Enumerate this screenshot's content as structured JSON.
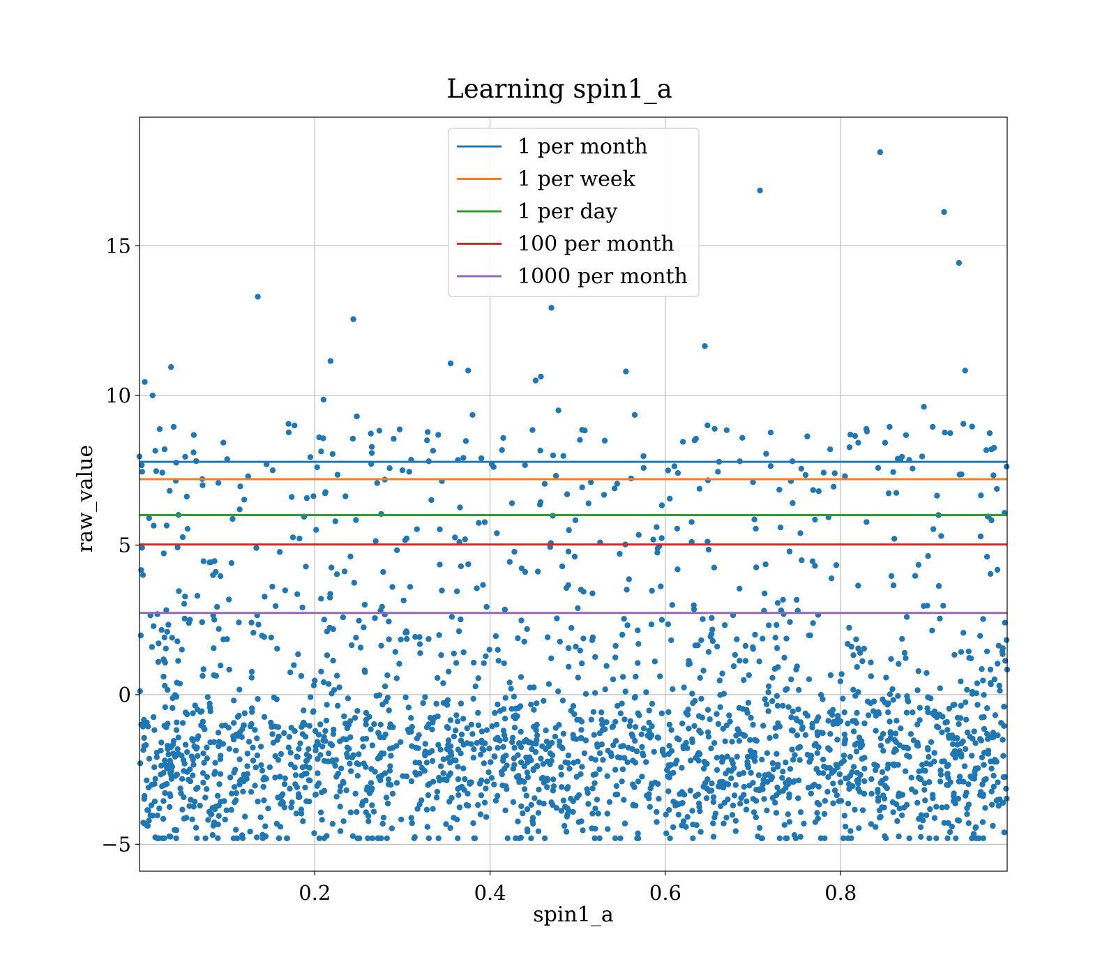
{
  "chart_data": {
    "type": "scatter",
    "title": "Learning spin1_a",
    "xlabel": "spin1_a",
    "ylabel": "raw_value",
    "xlim": [
      0.0,
      0.99
    ],
    "ylim": [
      -5.9,
      19.3
    ],
    "xticks": [
      0.2,
      0.4,
      0.6,
      0.8
    ],
    "xtick_labels": [
      "0.2",
      "0.4",
      "0.6",
      "0.8"
    ],
    "yticks": [
      -5,
      0,
      5,
      10,
      15
    ],
    "ytick_labels": [
      "−5",
      "0",
      "5",
      "10",
      "15"
    ],
    "grid": true,
    "legend_position": "top-center",
    "point_color": "#1f77b4",
    "scatter_series": {
      "name": "",
      "points": [
        [
          0.0,
          7.96
        ],
        [
          0.003,
          7.45
        ],
        [
          0.004,
          4.0
        ],
        [
          0.006,
          10.45
        ],
        [
          0.011,
          5.9
        ],
        [
          0.015,
          10.0
        ],
        [
          0.018,
          8.15
        ],
        [
          0.019,
          7.47
        ],
        [
          0.026,
          7.42
        ],
        [
          0.031,
          5.65
        ],
        [
          0.036,
          10.95
        ],
        [
          0.039,
          8.95
        ],
        [
          0.045,
          3.46
        ],
        [
          0.052,
          3.28
        ],
        [
          0.062,
          8.68
        ],
        [
          0.072,
          7.0
        ],
        [
          0.08,
          4.42
        ],
        [
          0.087,
          4.1
        ],
        [
          0.1,
          7.87
        ],
        [
          0.105,
          4.4
        ],
        [
          0.115,
          6.96
        ],
        [
          0.124,
          7.3
        ],
        [
          0.135,
          13.3
        ],
        [
          0.145,
          7.7
        ],
        [
          0.152,
          7.5
        ],
        [
          0.16,
          4.77
        ],
        [
          0.17,
          9.05
        ],
        [
          0.18,
          3.36
        ],
        [
          0.195,
          7.94
        ],
        [
          0.205,
          8.6
        ],
        [
          0.21,
          9.86
        ],
        [
          0.218,
          11.15
        ],
        [
          0.226,
          7.35
        ],
        [
          0.235,
          6.63
        ],
        [
          0.244,
          12.55
        ],
        [
          0.248,
          9.3
        ],
        [
          0.265,
          8.28
        ],
        [
          0.278,
          4.1
        ],
        [
          0.29,
          8.55
        ],
        [
          0.3,
          7.5
        ],
        [
          0.31,
          7.85
        ],
        [
          0.33,
          7.8
        ],
        [
          0.345,
          3.48
        ],
        [
          0.355,
          11.07
        ],
        [
          0.365,
          5.1
        ],
        [
          0.375,
          10.83
        ],
        [
          0.38,
          9.35
        ],
        [
          0.39,
          7.9
        ],
        [
          0.402,
          7.7
        ],
        [
          0.415,
          8.58
        ],
        [
          0.425,
          6.4
        ],
        [
          0.44,
          4.1
        ],
        [
          0.452,
          10.5
        ],
        [
          0.458,
          10.63
        ],
        [
          0.47,
          12.93
        ],
        [
          0.478,
          9.5
        ],
        [
          0.49,
          5.5
        ],
        [
          0.505,
          8.85
        ],
        [
          0.515,
          7.1
        ],
        [
          0.53,
          6.68
        ],
        [
          0.545,
          7.05
        ],
        [
          0.555,
          10.8
        ],
        [
          0.565,
          9.35
        ],
        [
          0.575,
          7.97
        ],
        [
          0.59,
          5.6
        ],
        [
          0.605,
          6.55
        ],
        [
          0.62,
          8.45
        ],
        [
          0.63,
          5.77
        ],
        [
          0.645,
          11.65
        ],
        [
          0.648,
          9.0
        ],
        [
          0.66,
          7.45
        ],
        [
          0.67,
          8.84
        ],
        [
          0.685,
          7.8
        ],
        [
          0.7,
          7.1
        ],
        [
          0.708,
          16.85
        ],
        [
          0.715,
          8.05
        ],
        [
          0.73,
          6.85
        ],
        [
          0.745,
          7.8
        ],
        [
          0.76,
          7.34
        ],
        [
          0.775,
          6.8
        ],
        [
          0.788,
          8.2
        ],
        [
          0.805,
          7.3
        ],
        [
          0.82,
          8.42
        ],
        [
          0.83,
          8.8
        ],
        [
          0.845,
          18.13
        ],
        [
          0.86,
          7.44
        ],
        [
          0.87,
          7.95
        ],
        [
          0.885,
          3.97
        ],
        [
          0.895,
          9.62
        ],
        [
          0.905,
          8.95
        ],
        [
          0.918,
          16.13
        ],
        [
          0.925,
          8.74
        ],
        [
          0.935,
          14.43
        ],
        [
          0.94,
          9.05
        ],
        [
          0.942,
          10.83
        ],
        [
          0.95,
          8.96
        ],
        [
          0.96,
          6.66
        ],
        [
          0.97,
          8.74
        ],
        [
          0.975,
          8.25
        ],
        [
          0.985,
          1.55
        ]
      ],
      "dense_band": {
        "x_range": [
          0.0,
          0.99
        ],
        "y_center": -2.5,
        "y_spread": 1.3,
        "upper_tail_max": 2.7,
        "point_count": 2000
      }
    },
    "series": [
      {
        "name": "1 per month",
        "y": 7.78,
        "color": "#1f77b4"
      },
      {
        "name": "1 per week",
        "y": 7.2,
        "color": "#ff7f0e"
      },
      {
        "name": "1 per day",
        "y": 6.0,
        "color": "#2ca02c"
      },
      {
        "name": "100 per month",
        "y": 5.02,
        "color": "#d62728"
      },
      {
        "name": "1000 per month",
        "y": 2.73,
        "color": "#9467bd"
      }
    ]
  }
}
